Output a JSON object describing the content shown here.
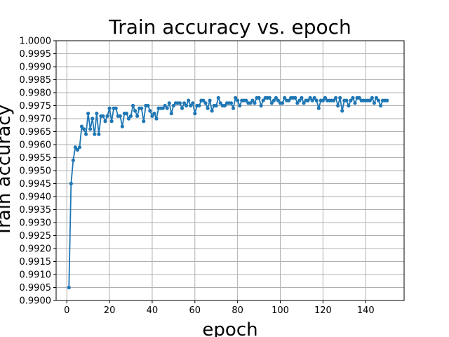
{
  "chart_data": {
    "type": "line",
    "title": "Train accuracy vs. epoch",
    "xlabel": "epoch",
    "ylabel": "Train accuracy",
    "xlim": [
      -5,
      158
    ],
    "ylim": [
      0.99,
      1.0
    ],
    "x_ticks": [
      0,
      20,
      40,
      60,
      80,
      100,
      120,
      140
    ],
    "y_ticks": [
      0.99,
      0.9905,
      0.991,
      0.9915,
      0.992,
      0.9925,
      0.993,
      0.9935,
      0.994,
      0.9945,
      0.995,
      0.9955,
      0.996,
      0.9965,
      0.997,
      0.9975,
      0.998,
      0.9985,
      0.999,
      0.9995,
      1.0
    ],
    "x_tick_labels": [
      "0",
      "20",
      "40",
      "60",
      "80",
      "100",
      "120",
      "140"
    ],
    "y_tick_labels": [
      "0.9900",
      "0.9905",
      "0.9910",
      "0.9915",
      "0.9920",
      "0.9925",
      "0.9930",
      "0.9935",
      "0.9940",
      "0.9945",
      "0.9950",
      "0.9955",
      "0.9960",
      "0.9965",
      "0.9970",
      "0.9975",
      "0.9980",
      "0.9985",
      "0.9990",
      "0.9995",
      "1.0000"
    ],
    "grid": true,
    "marker": "circle",
    "series": [
      {
        "color": "#1f77b4",
        "x_start": 1,
        "x_step": 1,
        "values": [
          0.9905,
          0.9945,
          0.9954,
          0.9959,
          0.9958,
          0.9959,
          0.9967,
          0.9966,
          0.9964,
          0.9972,
          0.9966,
          0.997,
          0.9964,
          0.9972,
          0.9964,
          0.9971,
          0.9971,
          0.9969,
          0.9971,
          0.9974,
          0.9969,
          0.9974,
          0.9974,
          0.9971,
          0.9971,
          0.9967,
          0.9972,
          0.9972,
          0.997,
          0.9971,
          0.9975,
          0.9973,
          0.9971,
          0.9974,
          0.9974,
          0.9969,
          0.9975,
          0.9975,
          0.9973,
          0.9971,
          0.9972,
          0.997,
          0.9974,
          0.9974,
          0.9974,
          0.9975,
          0.9974,
          0.9976,
          0.9972,
          0.9975,
          0.9976,
          0.9976,
          0.9976,
          0.9974,
          0.9976,
          0.9975,
          0.9977,
          0.9975,
          0.9976,
          0.9972,
          0.9975,
          0.9975,
          0.9977,
          0.9977,
          0.9976,
          0.9974,
          0.9977,
          0.9973,
          0.9975,
          0.9975,
          0.9978,
          0.9976,
          0.9975,
          0.9975,
          0.9976,
          0.9976,
          0.9976,
          0.9974,
          0.9978,
          0.9977,
          0.9975,
          0.9977,
          0.9977,
          0.9977,
          0.9976,
          0.9976,
          0.9977,
          0.9976,
          0.9978,
          0.9978,
          0.9975,
          0.9977,
          0.9978,
          0.9978,
          0.9978,
          0.9976,
          0.9977,
          0.9978,
          0.9977,
          0.9976,
          0.9976,
          0.9978,
          0.9977,
          0.9977,
          0.9978,
          0.9978,
          0.9978,
          0.9976,
          0.9977,
          0.9978,
          0.9976,
          0.9977,
          0.9977,
          0.9978,
          0.9977,
          0.9978,
          0.9977,
          0.9974,
          0.9977,
          0.9977,
          0.9978,
          0.9977,
          0.9977,
          0.9977,
          0.9977,
          0.9978,
          0.9975,
          0.9978,
          0.9973,
          0.9977,
          0.9977,
          0.9975,
          0.9977,
          0.9978,
          0.9976,
          0.9978,
          0.9978,
          0.9977,
          0.9977,
          0.9977,
          0.9977,
          0.9977,
          0.9978,
          0.9976,
          0.9978,
          0.9977,
          0.9975,
          0.9977,
          0.9977,
          0.9977
        ]
      }
    ]
  }
}
